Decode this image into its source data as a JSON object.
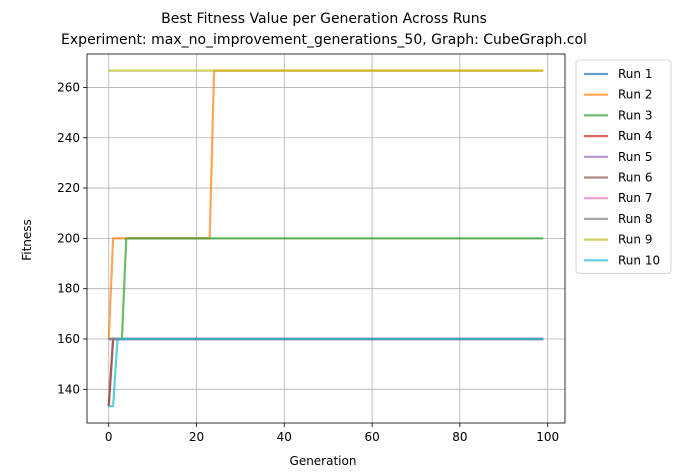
{
  "chart_data": {
    "type": "line",
    "title": "Best Fitness Value per Generation Across Runs",
    "subtitle": "Experiment: max_no_improvement_generations_50, Graph: CubeGraph.col",
    "xlabel": "Generation",
    "ylabel": "Fitness",
    "xlim": [
      -4.95,
      103.95
    ],
    "ylim": [
      126.6,
      273.3
    ],
    "xticks": [
      0,
      20,
      40,
      60,
      80,
      100
    ],
    "yticks": [
      140,
      160,
      180,
      200,
      220,
      240,
      260
    ],
    "grid": true,
    "legend_position": "outside-right",
    "series": [
      {
        "name": "Run 1",
        "color": "#1f77b4",
        "points": [
          [
            0,
            160
          ],
          [
            99,
            160
          ]
        ]
      },
      {
        "name": "Run 2",
        "color": "#ff7f0e",
        "points": [
          [
            0,
            160
          ],
          [
            1,
            200
          ],
          [
            23,
            200
          ],
          [
            24,
            266.7
          ],
          [
            99,
            266.7
          ]
        ]
      },
      {
        "name": "Run 3",
        "color": "#2ca02c",
        "points": [
          [
            0,
            160
          ],
          [
            3,
            160
          ],
          [
            4,
            200
          ],
          [
            99,
            200
          ]
        ]
      },
      {
        "name": "Run 4",
        "color": "#d62728",
        "points": [
          [
            0,
            133.3
          ],
          [
            1,
            160
          ],
          [
            99,
            160
          ]
        ]
      },
      {
        "name": "Run 5",
        "color": "#9467bd",
        "points": [
          [
            0,
            160
          ],
          [
            99,
            160
          ]
        ]
      },
      {
        "name": "Run 6",
        "color": "#8c564b",
        "points": [
          [
            0,
            133.3
          ],
          [
            1,
            160
          ],
          [
            99,
            160
          ]
        ]
      },
      {
        "name": "Run 7",
        "color": "#e377c2",
        "points": [
          [
            0,
            160
          ],
          [
            99,
            160
          ]
        ]
      },
      {
        "name": "Run 8",
        "color": "#7f7f7f",
        "points": [
          [
            0,
            160
          ],
          [
            99,
            160
          ]
        ]
      },
      {
        "name": "Run 9",
        "color": "#bcbd22",
        "points": [
          [
            0,
            266.7
          ],
          [
            99,
            266.7
          ]
        ]
      },
      {
        "name": "Run 10",
        "color": "#17becf",
        "points": [
          [
            0,
            133.3
          ],
          [
            1,
            133.3
          ],
          [
            2,
            160
          ],
          [
            99,
            160
          ]
        ]
      }
    ]
  }
}
